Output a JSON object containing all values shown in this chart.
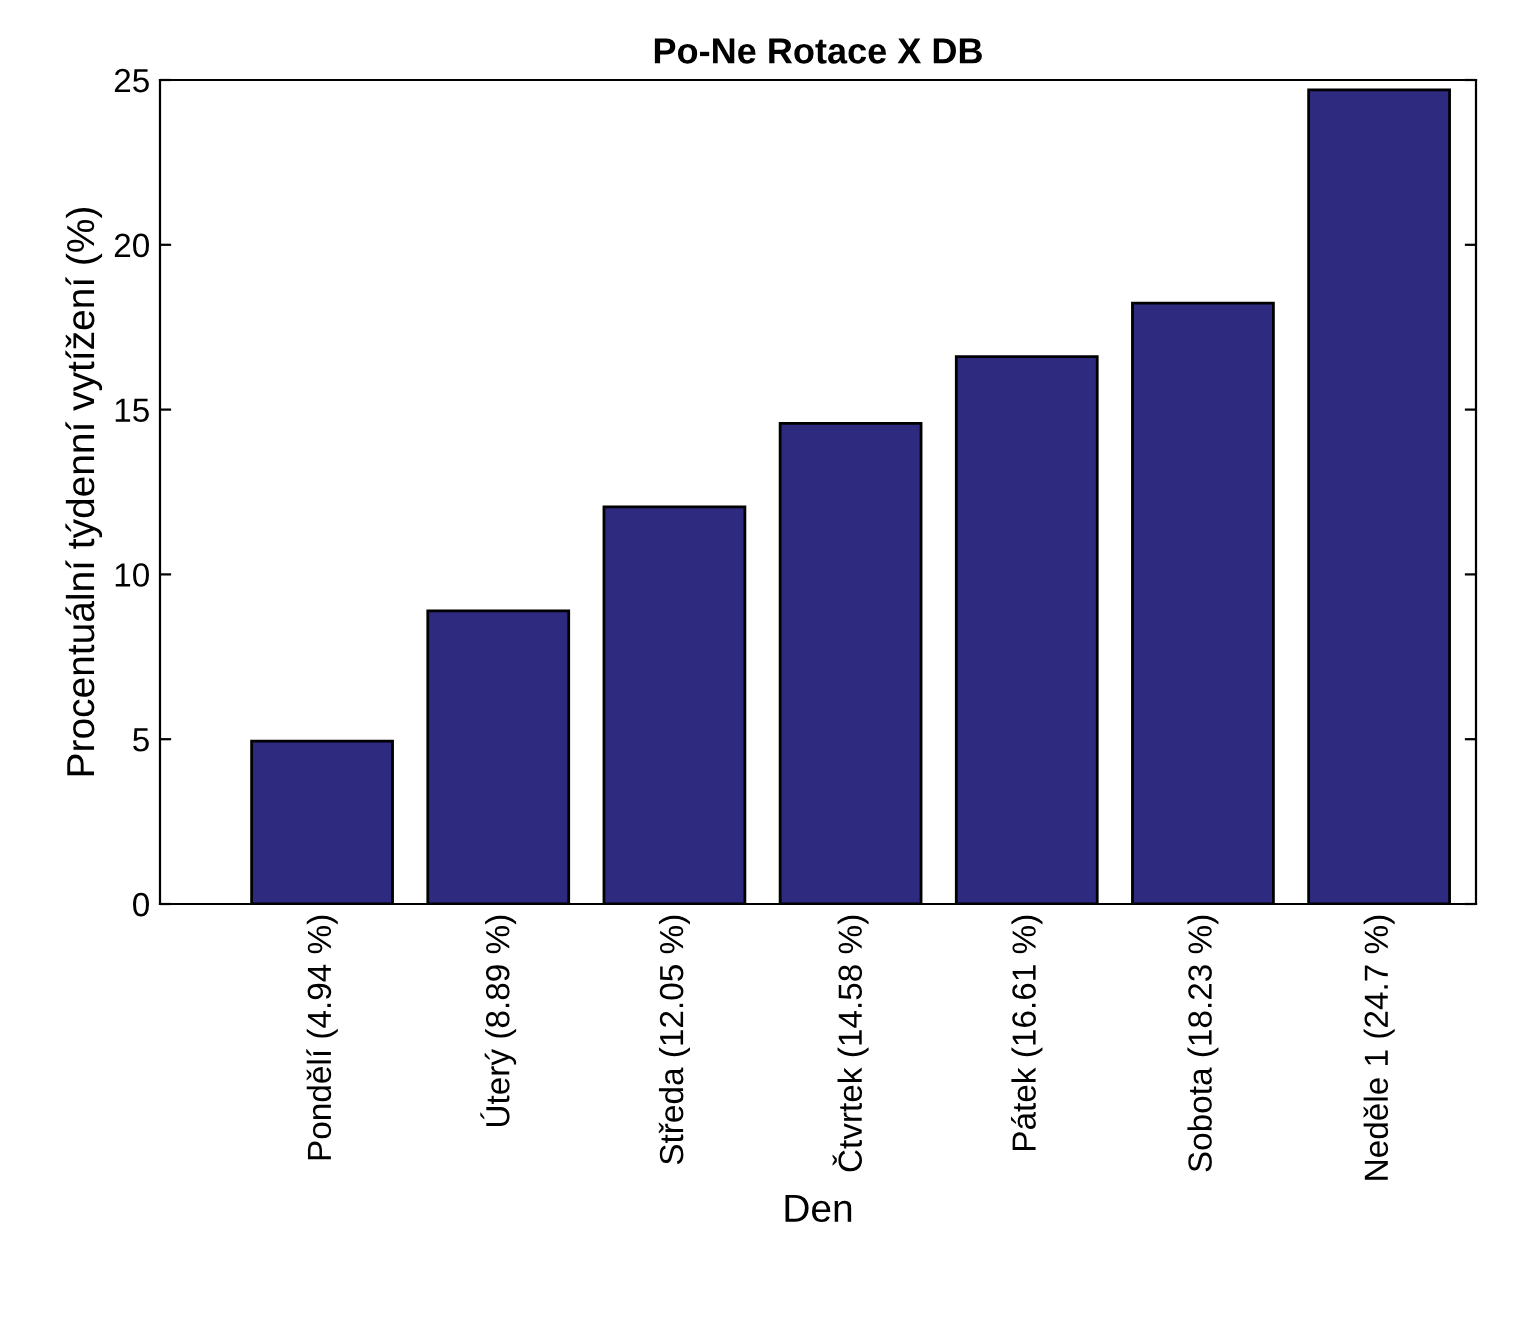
{
  "chart_data": {
    "type": "bar",
    "title": "Po-Ne Rotace X DB",
    "xlabel": "Den",
    "ylabel": "Procentuální týdenní vytížení (%)",
    "categories": [
      "Pondělí (4.94 %)",
      "Úterý (8.89 %)",
      "Středa (12.05 %)",
      "Čtvrtek (14.58 %)",
      "Pátek (16.61 %)",
      "Sobota (18.23 %)",
      "Neděle 1 (24.7 %)"
    ],
    "values": [
      4.94,
      8.89,
      12.05,
      14.58,
      16.61,
      18.23,
      24.7
    ],
    "color": "#2e2a80",
    "ylim": [
      0,
      25
    ],
    "yticks": [
      0,
      5,
      10,
      15,
      20,
      25
    ],
    "grid": false,
    "legend": false
  }
}
